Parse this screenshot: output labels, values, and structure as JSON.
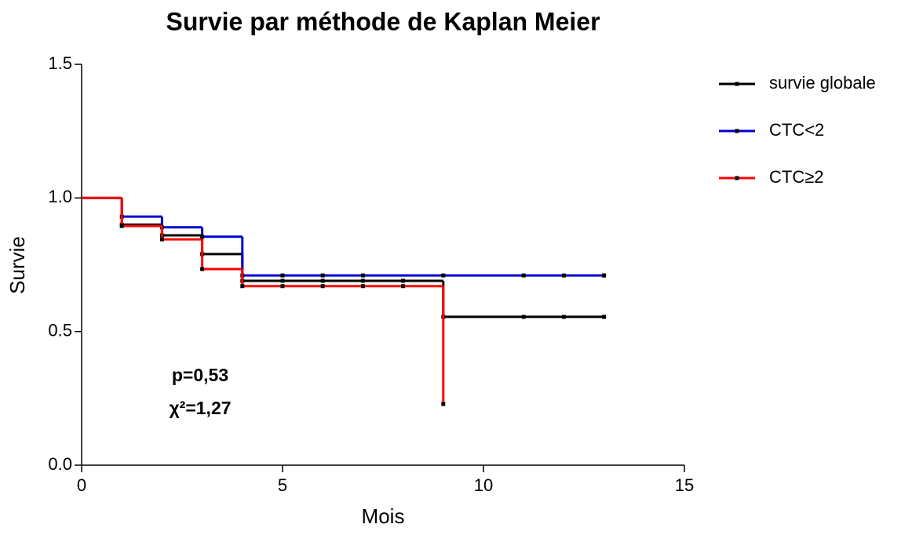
{
  "chart_data": {
    "type": "step",
    "title": "Survie par méthode de Kaplan Meier",
    "xlabel": "Mois",
    "ylabel": "Survie",
    "xlim": [
      0,
      15
    ],
    "xticks": [
      0,
      5,
      10,
      15
    ],
    "ylim": [
      0,
      1.5
    ],
    "yticks": [
      {
        "value": 0,
        "label": "0.0"
      },
      {
        "value": 0.5,
        "label": "0.5"
      },
      {
        "value": 1,
        "label": "1.0"
      },
      {
        "value": 1.5,
        "label": "1.5"
      }
    ],
    "annotations": [
      "p=0,53",
      "χ²=1,27"
    ],
    "series": [
      {
        "name": "survie globale",
        "color": "#000000",
        "x": [
          0,
          1,
          2,
          3,
          4,
          9,
          13
        ],
        "values": [
          1,
          0.9,
          0.86,
          0.79,
          0.69,
          0.555,
          0.555
        ],
        "censored": [
          5,
          6,
          7,
          8,
          11,
          12,
          13
        ]
      },
      {
        "name": "CTC<2",
        "color": "#0000cc",
        "x": [
          0,
          1,
          2,
          3,
          4,
          13
        ],
        "values": [
          1,
          0.93,
          0.89,
          0.855,
          0.71,
          0.71
        ],
        "censored": [
          5,
          6,
          7,
          9,
          11,
          12,
          13
        ]
      },
      {
        "name": "CTC≥2",
        "color": "#ff0000",
        "x": [
          0,
          1,
          2,
          3,
          4,
          9
        ],
        "values": [
          1,
          0.895,
          0.845,
          0.734,
          0.67,
          0.229
        ],
        "censored": [
          5,
          6,
          7,
          8
        ]
      }
    ]
  }
}
